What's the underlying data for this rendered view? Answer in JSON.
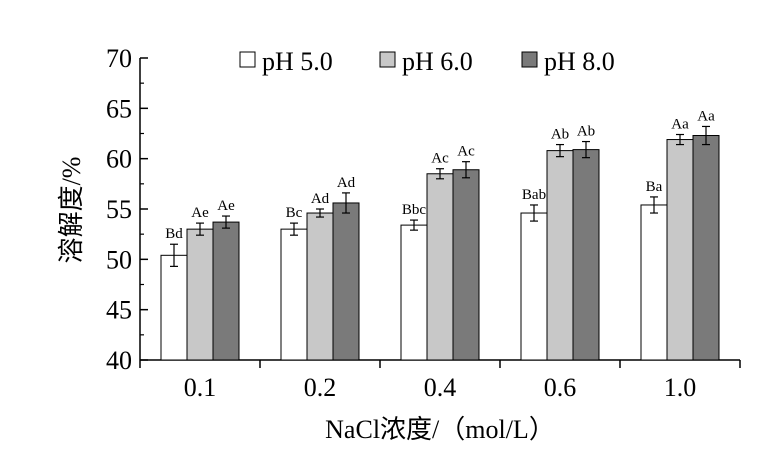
{
  "chart_data": {
    "type": "bar",
    "title": "",
    "xlabel": "NaCl浓度/（mol/L）",
    "ylabel": "溶解度/%",
    "ylim": [
      40,
      70
    ],
    "yticks": [
      40,
      45,
      50,
      55,
      60,
      65,
      70
    ],
    "categories": [
      "0.1",
      "0.2",
      "0.4",
      "0.6",
      "1.0"
    ],
    "legend_position": "top",
    "grid": false,
    "series": [
      {
        "name": "pH 5.0",
        "color": "#ffffff",
        "values": [
          50.4,
          53.0,
          53.4,
          54.6,
          55.4
        ],
        "errors": [
          1.1,
          0.6,
          0.5,
          0.8,
          0.8
        ],
        "labels": [
          "Bd",
          "Bc",
          "Bbc",
          "Bab",
          "Ba"
        ]
      },
      {
        "name": "pH 6.0",
        "color": "#c8c8c8",
        "values": [
          53.0,
          54.6,
          58.5,
          60.8,
          61.9
        ],
        "errors": [
          0.6,
          0.4,
          0.5,
          0.6,
          0.5
        ],
        "labels": [
          "Ae",
          "Ad",
          "Ac",
          "Ab",
          "Aa"
        ]
      },
      {
        "name": "pH 8.0",
        "color": "#7a7a7a",
        "values": [
          53.7,
          55.6,
          58.9,
          60.9,
          62.3
        ],
        "errors": [
          0.6,
          1.0,
          0.8,
          0.8,
          0.9
        ],
        "labels": [
          "Ae",
          "Ad",
          "Ac",
          "Ab",
          "Aa"
        ]
      }
    ]
  }
}
